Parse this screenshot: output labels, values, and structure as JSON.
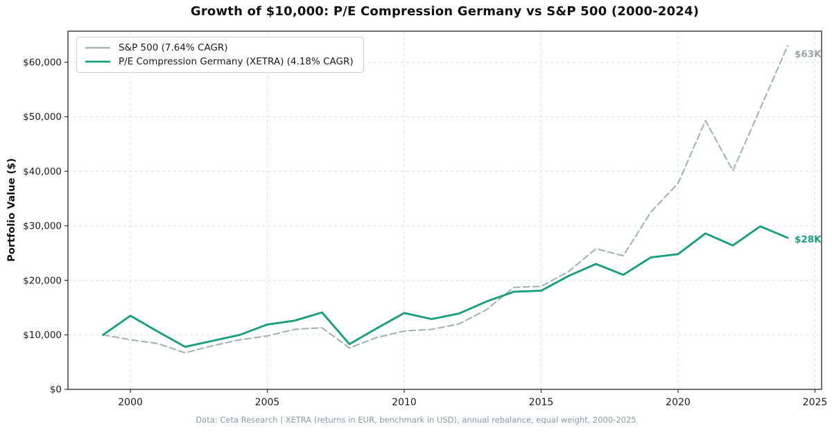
{
  "title": "Growth of $10,000: P/E Compression Germany vs S&P 500 (2000-2024)",
  "footer": "Data: Ceta Research | XETRA (returns in EUR, benchmark in USD), annual rebalance, equal weight, 2000-2025",
  "chart_data": {
    "type": "line",
    "title": "Growth of $10,000: P/E Compression Germany vs S&P 500 (2000-2024)",
    "xlabel": "",
    "ylabel": "Portfolio Value ($)",
    "grid": true,
    "legend_position": "upper left",
    "xlim": [
      1997.72,
      2025.24
    ],
    "ylim": [
      0,
      65700
    ],
    "x": [
      1999,
      2000,
      2001,
      2002,
      2003,
      2004,
      2005,
      2006,
      2007,
      2008,
      2009,
      2010,
      2011,
      2012,
      2013,
      2014,
      2015,
      2016,
      2017,
      2018,
      2019,
      2020,
      2021,
      2022,
      2023,
      2024
    ],
    "xticks": [
      2000,
      2005,
      2010,
      2015,
      2020,
      2025
    ],
    "yticks": {
      "values": [
        0,
        10000,
        20000,
        30000,
        40000,
        50000,
        60000
      ],
      "labels": [
        "$0",
        "$10,000",
        "$20,000",
        "$30,000",
        "$40,000",
        "$50,000",
        "$60,000"
      ]
    },
    "series": [
      {
        "name": "S&P 500 (7.64% CAGR)",
        "style": "dashed",
        "color": "#a9b4b4",
        "values": [
          10000,
          9100,
          8400,
          6700,
          8000,
          9100,
          9800,
          11000,
          11300,
          7600,
          9500,
          10700,
          11000,
          12000,
          14600,
          18700,
          18900,
          21600,
          25800,
          24500,
          32500,
          37800,
          49300,
          40100,
          51500,
          63000
        ]
      },
      {
        "name": "P/E Compression Germany (XETRA) (4.18% CAGR)",
        "style": "solid",
        "color": "#18a07d",
        "values": [
          10000,
          13500,
          10600,
          7800,
          8900,
          10000,
          11900,
          12600,
          14100,
          8300,
          11200,
          14000,
          12900,
          13900,
          16100,
          17900,
          18100,
          20800,
          23000,
          21000,
          24200,
          24800,
          28600,
          26400,
          29900,
          27800
        ]
      }
    ],
    "annotations": [
      {
        "text": "$63K",
        "year": 2024,
        "value": 61600,
        "color": "#9aa5a8"
      },
      {
        "text": "$28K",
        "year": 2024,
        "value": 27600,
        "color": "#18a07d"
      }
    ]
  }
}
